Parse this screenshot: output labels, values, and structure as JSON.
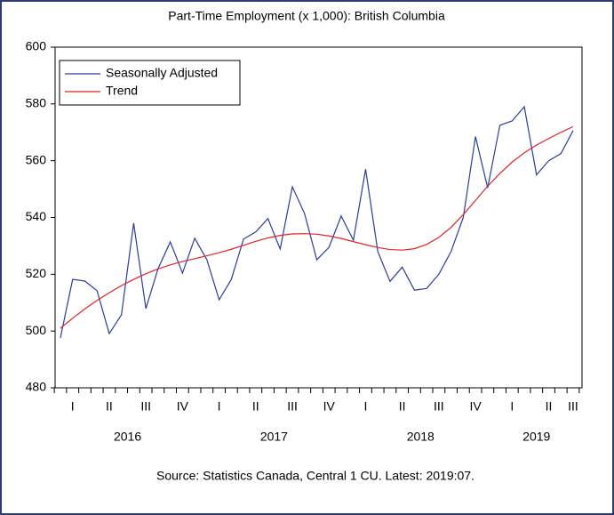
{
  "chart_data": {
    "type": "line",
    "title": "Part-Time Employment (x 1,000): British Columbia",
    "source": "Source: Statistics Canada, Central 1 CU. Latest: 2019:07.",
    "categories": [
      null,
      "I",
      null,
      null,
      "II",
      null,
      null,
      "III",
      null,
      null,
      "IV",
      null,
      null,
      "I",
      null,
      null,
      "II",
      null,
      null,
      "III",
      null,
      null,
      "IV",
      null,
      null,
      "I",
      null,
      null,
      "II",
      null,
      null,
      "III",
      null,
      null,
      "IV",
      null,
      null,
      "I",
      null,
      null,
      "II",
      null,
      "III"
    ],
    "year_labels": [
      "2016",
      "2017",
      "2018",
      "2019"
    ],
    "series": [
      {
        "name": "Seasonally Adjusted",
        "color": "#2b3d99",
        "values": [
          497.6,
          518.2,
          517.6,
          514.2,
          499.1,
          505.7,
          538,
          507.9,
          522,
          531.4,
          520.4,
          532.7,
          525.1,
          511,
          518.2,
          532.4,
          534.9,
          539.6,
          528.9,
          550.8,
          541.4,
          525.1,
          529.5,
          540.5,
          532,
          557,
          528,
          517.5,
          522.5,
          514.4,
          515,
          520,
          528,
          540,
          568.5,
          550.4,
          572.5,
          574,
          579,
          555,
          560,
          562.5,
          570.6
        ]
      },
      {
        "name": "Trend",
        "color": "#e02424",
        "values": [
          501,
          504.5,
          507.8,
          510.8,
          513.5,
          516,
          518.2,
          520.2,
          521.9,
          523.3,
          524.5,
          525.5,
          526.5,
          527.6,
          528.8,
          530.2,
          531.6,
          532.8,
          533.7,
          534.2,
          534.3,
          534.1,
          533.5,
          532.6,
          531.5,
          530.4,
          529.4,
          528.7,
          528.5,
          529,
          530.5,
          533,
          536.5,
          541,
          546,
          551,
          555.5,
          559.5,
          562.8,
          565.5,
          567.8,
          570,
          572
        ]
      }
    ],
    "ylim": [
      480,
      600
    ],
    "yticks": [
      480,
      500,
      520,
      540,
      560,
      580,
      600
    ],
    "legend": "upper left",
    "grid": false
  }
}
